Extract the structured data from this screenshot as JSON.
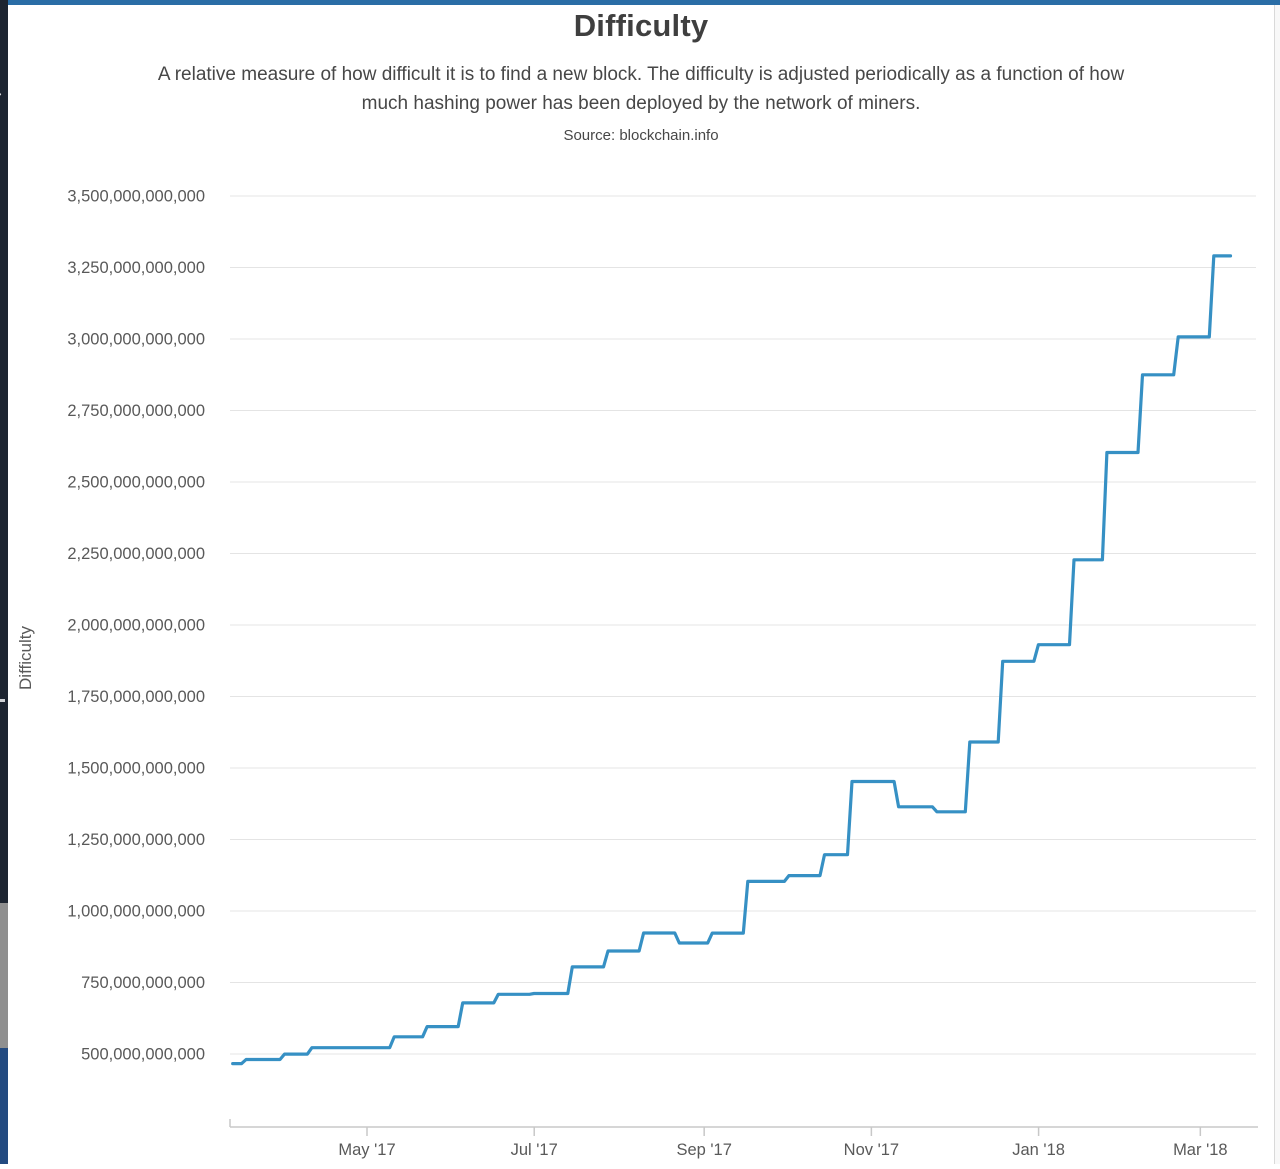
{
  "page": {
    "title": "Difficulty",
    "subtitle_lines": [
      "A relative measure of how difficult it is to find a new block. The difficulty is adjusted periodically as a function of how",
      "much hashing power has been deployed by the network of miners."
    ],
    "source_label": "Source: blockchain.info"
  },
  "left_edge": {
    "chevron_glyph": "›"
  },
  "chart_data": {
    "type": "line",
    "line_style": "step-after",
    "title": "Difficulty",
    "subtitle": "A relative measure of how difficult it is to find a new block. The difficulty is adjusted periodically as a function of how much hashing power has been deployed by the network of miners.",
    "source": "Source: blockchain.info",
    "xlabel": "",
    "ylabel": "Difficulty",
    "legend_position": "none",
    "grid": true,
    "line_color": "#3690c4",
    "grid_color": "#e4e4e4",
    "axis_color": "#c8c8c8",
    "text_color": "#595959",
    "x_tick_labels": [
      "May '17",
      "Jul '17",
      "Sep '17",
      "Nov '17",
      "Jan '18",
      "Mar '18"
    ],
    "x_tick_dates": [
      "2017-05-01",
      "2017-07-01",
      "2017-09-01",
      "2017-11-01",
      "2018-01-01",
      "2018-03-01"
    ],
    "y_tick_labels": [
      "500,000,000,000",
      "750,000,000,000",
      "1,000,000,000,000",
      "1,250,000,000,000",
      "1,500,000,000,000",
      "1,750,000,000,000",
      "2,000,000,000,000",
      "2,250,000,000,000",
      "2,500,000,000,000",
      "2,750,000,000,000",
      "3,000,000,000,000",
      "3,250,000,000,000",
      "3,500,000,000,000"
    ],
    "y_tick_values": [
      500000000000,
      750000000000,
      1000000000000,
      1250000000000,
      1500000000000,
      1750000000000,
      2000000000000,
      2250000000000,
      2500000000000,
      2750000000000,
      3000000000000,
      3250000000000,
      3500000000000
    ],
    "ylim": [
      245000000000,
      3560000000000
    ],
    "x_domain": [
      "2017-03-13",
      "2018-03-12"
    ],
    "points": [
      {
        "date": "2017-03-13",
        "difficulty": 466440000000
      },
      {
        "date": "2017-03-17",
        "difficulty": 480640000000
      },
      {
        "date": "2017-03-31",
        "difficulty": 499640000000
      },
      {
        "date": "2017-04-10",
        "difficulty": 521970000000
      },
      {
        "date": "2017-05-10",
        "difficulty": 559970000000
      },
      {
        "date": "2017-05-22",
        "difficulty": 595920000000
      },
      {
        "date": "2017-06-04",
        "difficulty": 678760000000
      },
      {
        "date": "2017-06-17",
        "difficulty": 708660000000
      },
      {
        "date": "2017-06-30",
        "difficulty": 711700000000
      },
      {
        "date": "2017-07-14",
        "difficulty": 804530000000
      },
      {
        "date": "2017-07-27",
        "difficulty": 860220000000
      },
      {
        "date": "2017-08-09",
        "difficulty": 923230000000
      },
      {
        "date": "2017-08-22",
        "difficulty": 888170000000
      },
      {
        "date": "2017-09-03",
        "difficulty": 922720000000
      },
      {
        "date": "2017-09-16",
        "difficulty": 1103400000000
      },
      {
        "date": "2017-10-01",
        "difficulty": 1123860000000
      },
      {
        "date": "2017-10-14",
        "difficulty": 1196790000000
      },
      {
        "date": "2017-10-24",
        "difficulty": 1452840000000
      },
      {
        "date": "2017-11-10",
        "difficulty": 1364420000000
      },
      {
        "date": "2017-11-24",
        "difficulty": 1347000000000
      },
      {
        "date": "2017-12-06",
        "difficulty": 1590900000000
      },
      {
        "date": "2017-12-18",
        "difficulty": 1873110000000
      },
      {
        "date": "2017-12-31",
        "difficulty": 1931140000000
      },
      {
        "date": "2018-01-13",
        "difficulty": 2227850000000
      },
      {
        "date": "2018-01-25",
        "difficulty": 2603080000000
      },
      {
        "date": "2018-02-07",
        "difficulty": 2874670000000
      },
      {
        "date": "2018-02-20",
        "difficulty": 3007380000000
      },
      {
        "date": "2018-03-05",
        "difficulty": 3290610000000
      }
    ]
  }
}
